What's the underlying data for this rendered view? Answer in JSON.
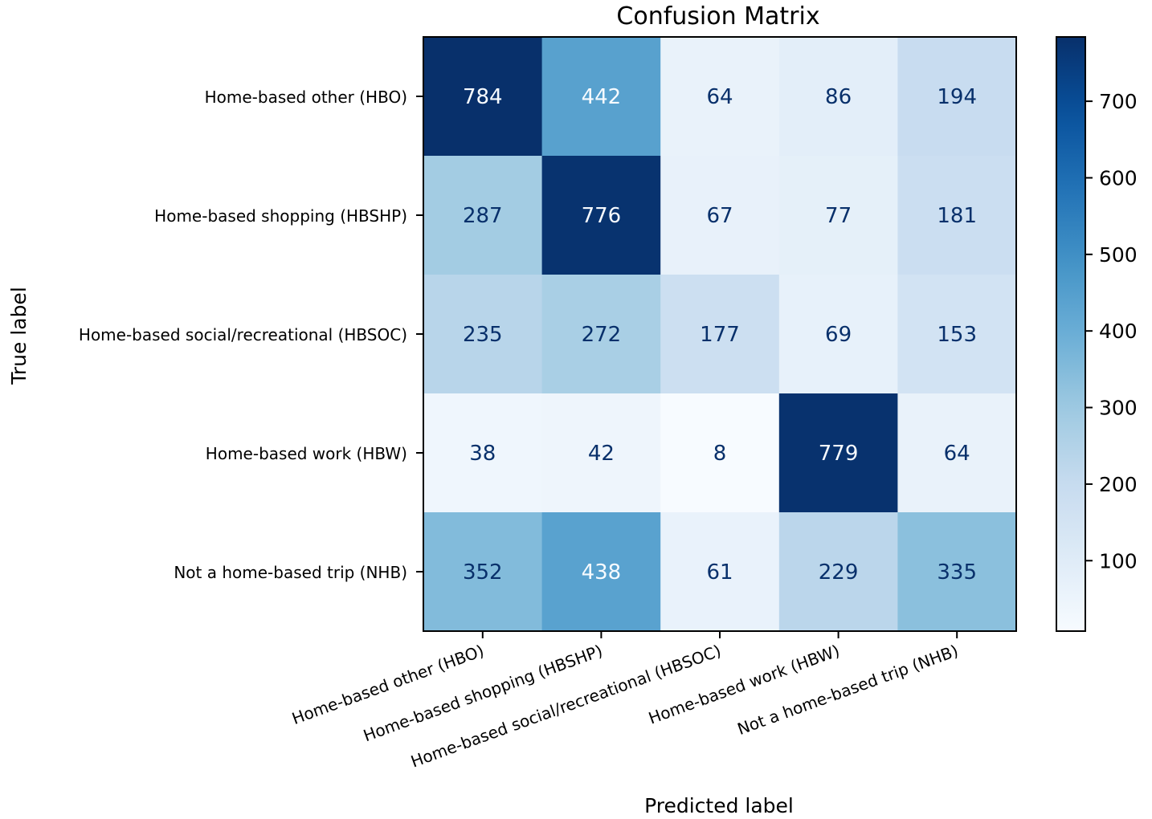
{
  "chart_data": {
    "type": "heatmap",
    "title": "Confusion Matrix",
    "xlabel": "Predicted label",
    "ylabel": "True label",
    "row_labels": [
      "Home-based other (HBO)",
      "Home-based shopping (HBSHP)",
      "Home-based social/recreational (HBSOC)",
      "Home-based work (HBW)",
      "Not a home-based trip (NHB)"
    ],
    "col_labels": [
      "Home-based other (HBO)",
      "Home-based shopping (HBSHP)",
      "Home-based social/recreational (HBSOC)",
      "Home-based work (HBW)",
      "Not a home-based trip (NHB)"
    ],
    "values": [
      [
        784,
        442,
        64,
        86,
        194
      ],
      [
        287,
        776,
        67,
        77,
        181
      ],
      [
        235,
        272,
        177,
        69,
        153
      ],
      [
        38,
        42,
        8,
        779,
        64
      ],
      [
        352,
        438,
        61,
        229,
        335
      ]
    ],
    "colormap": "Blues",
    "colorbar": {
      "min": 8,
      "max": 784,
      "ticks": [
        100,
        200,
        300,
        400,
        500,
        600,
        700
      ]
    }
  }
}
